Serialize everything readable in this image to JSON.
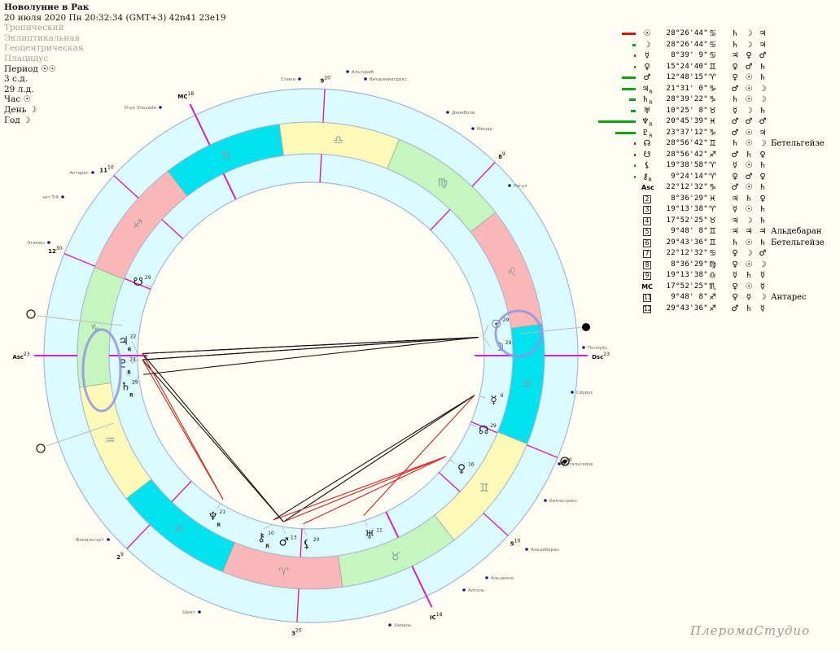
{
  "header": {
    "title": "Новолуние в Рак",
    "datetime": "20 июля 2020  Пн  20:32:34 (GMT+3) 42n41  23e19",
    "zodiac": "Тропический",
    "coords": "Эклиптикальная",
    "center": "Геоцентрическая",
    "houses": "Плацидус",
    "period": "Период ☉☉",
    "sd": "3 с.д.",
    "ld": "29 л.д.",
    "hour": "Час ☉",
    "day": "День ☽",
    "year": "Год ☽"
  },
  "colors": {
    "fire": "#f9b7b7",
    "earth": "#c6f6c0",
    "air": "#fdfab8",
    "water": "#00e3ef",
    "band": "#dcfbff",
    "cusp": "#d21fd2",
    "aspect_hard": "#111111",
    "aspect_soft": "#e02020",
    "highlight": "#8f93e6",
    "bar_pos": "#14a014",
    "bar_neg": "#e01010"
  },
  "signs": [
    "♈",
    "♉",
    "♊",
    "♋",
    "♌",
    "♍",
    "♎",
    "♏",
    "♐",
    "♑",
    "♒",
    "♓"
  ],
  "table": [
    {
      "glyph": "☉",
      "retro": false,
      "deg": "28°26'44\"",
      "sign": "♋",
      "rulers": [
        "♄",
        "☽",
        "♃"
      ],
      "star": "",
      "strength": -8
    },
    {
      "glyph": "☽",
      "retro": false,
      "deg": "28°26'44\"",
      "sign": "♋",
      "rulers": [
        "♄",
        "☽",
        "♃"
      ],
      "star": "",
      "strength": 2
    },
    {
      "glyph": "☿",
      "retro": false,
      "deg": "8°39' 9\"",
      "sign": "♋",
      "rulers": [
        "♃",
        "♀",
        "♂"
      ],
      "star": "",
      "strength": -1
    },
    {
      "glyph": "♀",
      "retro": false,
      "deg": "15°24'40\"",
      "sign": "♊",
      "rulers": [
        "♀",
        "♂",
        "♄"
      ],
      "star": "",
      "strength": 1
    },
    {
      "glyph": "♂",
      "retro": false,
      "deg": "12°48'15\"",
      "sign": "♈",
      "rulers": [
        "♀",
        "☉",
        "♄"
      ],
      "star": "",
      "strength": 8
    },
    {
      "glyph": "♃",
      "retro": true,
      "deg": "21°31' 0\"",
      "sign": "♑",
      "rulers": [
        "♂",
        "☉",
        "☽"
      ],
      "star": "",
      "strength": 8
    },
    {
      "glyph": "♄",
      "retro": true,
      "deg": "28°39'22\"",
      "sign": "♑",
      "rulers": [
        "♄",
        "☉",
        "☽"
      ],
      "star": "",
      "strength": 4
    },
    {
      "glyph": "♅",
      "retro": false,
      "deg": "10°25' 8\"",
      "sign": "♉",
      "rulers": [
        "☿",
        "☽",
        "♄"
      ],
      "star": "",
      "strength": 3
    },
    {
      "glyph": "♆",
      "retro": true,
      "deg": "20°45'39\"",
      "sign": "♓",
      "rulers": [
        "♂",
        "♂",
        "♂"
      ],
      "star": "",
      "strength": 22
    },
    {
      "glyph": "♇",
      "retro": true,
      "deg": "23°37'12\"",
      "sign": "♑",
      "rulers": [
        "♂",
        "☉",
        "♃"
      ],
      "star": "",
      "strength": 12
    },
    {
      "glyph": "☊",
      "retro": false,
      "deg": "28°56'42\"",
      "sign": "♊",
      "rulers": [
        "♄",
        "☉",
        "☽"
      ],
      "star": "Бетельгейзе",
      "strength": -1
    },
    {
      "glyph": "☋",
      "retro": false,
      "deg": "28°56'42\"",
      "sign": "♐",
      "rulers": [
        "♂",
        "♄",
        "♀"
      ],
      "star": "",
      "strength": -1
    },
    {
      "glyph": "⚸",
      "retro": false,
      "deg": "19°38'58\"",
      "sign": "♈",
      "rulers": [
        "☿",
        "☉",
        "♄"
      ],
      "star": "",
      "strength": 1
    },
    {
      "glyph": "⚷",
      "retro": true,
      "deg": "9°24'14\"",
      "sign": "♈",
      "rulers": [
        "♀",
        "♂",
        "♀"
      ],
      "star": "",
      "strength": 0.5
    },
    {
      "glyph": "Asc",
      "retro": false,
      "deg": "22°12'32\"",
      "sign": "♑",
      "rulers": [
        "♂",
        "☉",
        "♄"
      ],
      "star": ""
    },
    {
      "house": "2",
      "deg": "8°36'29\"",
      "sign": "♓",
      "rulers": [
        "♃",
        "♄",
        "♀"
      ],
      "star": ""
    },
    {
      "house": "3",
      "deg": "19°13'38\"",
      "sign": "♈",
      "rulers": [
        "☿",
        "☉",
        "♄"
      ],
      "star": ""
    },
    {
      "house": "4",
      "deg": "17°52'25\"",
      "sign": "♉",
      "rulers": [
        "♃",
        "☽",
        "♄"
      ],
      "star": ""
    },
    {
      "house": "5",
      "deg": "9°48' 8\"",
      "sign": "♊",
      "rulers": [
        "♃",
        "♃",
        "♃"
      ],
      "star": "Альдебаран"
    },
    {
      "house": "6",
      "deg": "29°43'36\"",
      "sign": "♊",
      "rulers": [
        "♄",
        "☉",
        "♄"
      ],
      "star": "Бетельгейзе"
    },
    {
      "house": "7",
      "deg": "22°12'32\"",
      "sign": "♋",
      "rulers": [
        "♀",
        "☽",
        "♂"
      ],
      "star": ""
    },
    {
      "house": "8",
      "deg": "8°36'29\"",
      "sign": "♍",
      "rulers": [
        "♀",
        "☉",
        "☽"
      ],
      "star": ""
    },
    {
      "house": "9",
      "deg": "19°13'38\"",
      "sign": "♎",
      "rulers": [
        "☿",
        "♄",
        "☿"
      ],
      "star": ""
    },
    {
      "glyph": "MC",
      "retro": false,
      "deg": "17°52'25\"",
      "sign": "♏",
      "rulers": [
        "♀",
        "☉",
        "☿"
      ],
      "star": ""
    },
    {
      "house": "11",
      "deg": "9°48' 8\"",
      "sign": "♐",
      "rulers": [
        "♀",
        "☿",
        "☽"
      ],
      "star": "Антарес"
    },
    {
      "house": "12",
      "deg": "29°43'36\"",
      "sign": "♐",
      "rulers": [
        "♂",
        "♄",
        "☿"
      ],
      "star": ""
    }
  ],
  "chart": {
    "asc_longitude": 292.21,
    "cusps": [
      {
        "label": "Asc",
        "sup": "23",
        "lon": 292.21
      },
      {
        "label": "2",
        "sup": "9",
        "lon": 338.61
      },
      {
        "label": "3",
        "sup": "20",
        "lon": 19.23
      },
      {
        "label": "IC",
        "sup": "18",
        "lon": 47.87
      },
      {
        "label": "5",
        "sup": "10",
        "lon": 69.8
      },
      {
        "label": "6",
        "sup": "30",
        "lon": 89.73
      },
      {
        "label": "Dsc",
        "sup": "23",
        "lon": 112.21
      },
      {
        "label": "8",
        "sup": "9",
        "lon": 158.61
      },
      {
        "label": "9",
        "sup": "20",
        "lon": 199.23
      },
      {
        "label": "MC",
        "sup": "18",
        "lon": 227.87
      },
      {
        "label": "11",
        "sup": "10",
        "lon": 249.8
      },
      {
        "label": "12",
        "sup": "30",
        "lon": 269.73
      }
    ],
    "planets": [
      {
        "id": "moon",
        "glyph": "☽",
        "lon": 118.45,
        "sup": "29",
        "retro": false
      },
      {
        "id": "sun",
        "glyph": "☉",
        "lon": 118.45,
        "sup": "29",
        "retro": false
      },
      {
        "id": "mercury",
        "glyph": "☿",
        "lon": 98.65,
        "sup": "9",
        "retro": false
      },
      {
        "id": "venus",
        "glyph": "♀",
        "lon": 75.41,
        "sup": "16",
        "retro": false
      },
      {
        "id": "mars",
        "glyph": "♂",
        "lon": 12.8,
        "sup": "13",
        "retro": false
      },
      {
        "id": "jupiter",
        "glyph": "♃",
        "lon": 291.52,
        "sup": "22",
        "retro": true
      },
      {
        "id": "saturn",
        "glyph": "♄",
        "lon": 298.66,
        "sup": "29",
        "retro": true
      },
      {
        "id": "uranus",
        "glyph": "♅",
        "lon": 40.42,
        "sup": "11",
        "retro": false
      },
      {
        "id": "neptune",
        "glyph": "♆",
        "lon": 350.76,
        "sup": "21",
        "retro": true
      },
      {
        "id": "pluto",
        "glyph": "♇",
        "lon": 293.62,
        "sup": "24",
        "retro": true
      },
      {
        "id": "node",
        "glyph": "☊",
        "lon": 88.95,
        "sup": "29",
        "retro": false
      },
      {
        "id": "snode",
        "glyph": "☋",
        "lon": 268.95,
        "sup": "29",
        "retro": false
      },
      {
        "id": "lilith",
        "glyph": "⚸",
        "lon": 19.65,
        "sup": "20",
        "retro": false
      },
      {
        "id": "chiron",
        "glyph": "⚷",
        "lon": 9.4,
        "sup": "10",
        "retro": true
      }
    ],
    "retro_mark": "R",
    "aspects": [
      {
        "a": "sun",
        "b": "jupiter",
        "kind": "hard"
      },
      {
        "a": "sun",
        "b": "pluto",
        "kind": "hard"
      },
      {
        "a": "sun",
        "b": "saturn",
        "kind": "hard"
      },
      {
        "a": "moon",
        "b": "jupiter",
        "kind": "hard"
      },
      {
        "a": "moon",
        "b": "pluto",
        "kind": "hard"
      },
      {
        "a": "jupiter",
        "b": "mars",
        "kind": "hard"
      },
      {
        "a": "pluto",
        "b": "mars",
        "kind": "hard"
      },
      {
        "a": "jupiter",
        "b": "neptune",
        "kind": "soft"
      },
      {
        "a": "pluto",
        "b": "neptune",
        "kind": "soft"
      },
      {
        "a": "mars",
        "b": "mercury",
        "kind": "hard"
      },
      {
        "a": "chiron",
        "b": "mercury",
        "kind": "hard"
      },
      {
        "a": "mars",
        "b": "venus",
        "kind": "soft"
      },
      {
        "a": "lilith",
        "b": "venus",
        "kind": "soft"
      },
      {
        "a": "chiron",
        "b": "venus",
        "kind": "soft"
      },
      {
        "a": "uranus",
        "b": "mercury",
        "kind": "soft"
      }
    ],
    "stars": [
      "Спика",
      "Альгораб",
      "Виндемиатрикс",
      "Денебола",
      "Мицар",
      "Регул",
      "Поллукс",
      "Сириус",
      "Бетельгейзе",
      "Беллатрикс",
      "Альдебаран",
      "Альциона",
      "Алголь",
      "Хамаль",
      "Шеат",
      "Фомальгаут",
      "Этамин",
      "зет TrA",
      "Антарес",
      "Унук Эльхайя"
    ]
  },
  "watermark": "ПлеромаСтудио"
}
